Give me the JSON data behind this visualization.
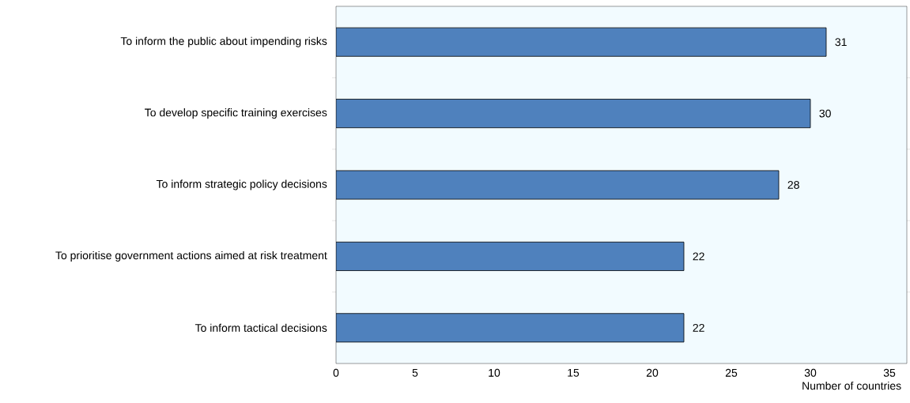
{
  "chart_data": {
    "type": "bar",
    "orientation": "horizontal",
    "categories": [
      "To inform the public about impending risks",
      "To develop specific training exercises",
      "To inform strategic policy decisions",
      "To prioritise government actions aimed at risk treatment",
      "To inform tactical decisions"
    ],
    "values": [
      31,
      30,
      28,
      22,
      22
    ],
    "color": "#4f81bd",
    "data_labels": true,
    "xlabel": "Number of countries",
    "xlim": [
      0,
      36.1
    ],
    "xticks": [
      0,
      5,
      10,
      15,
      20,
      25,
      30,
      35
    ],
    "grid": false
  }
}
